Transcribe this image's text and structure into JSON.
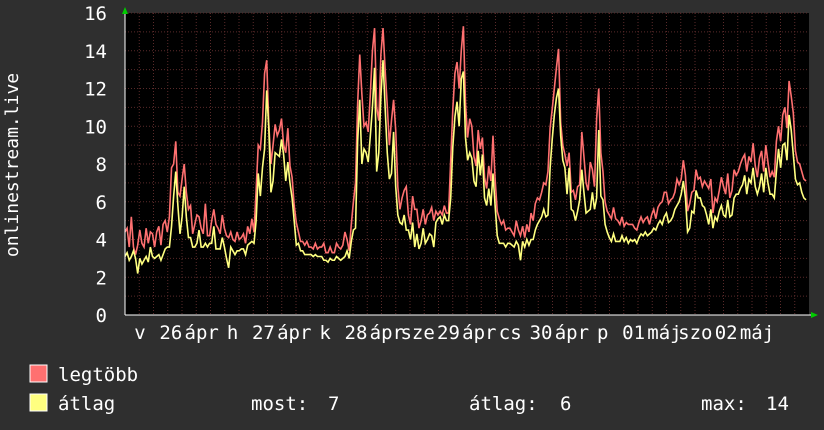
{
  "chart_data": {
    "type": "line",
    "ylabel": "onlinestream.live",
    "ylim": [
      0,
      16
    ],
    "yticks": [
      0,
      2,
      4,
      6,
      8,
      10,
      12,
      14,
      16
    ],
    "xticks": [
      "v",
      "26",
      "ápr",
      "h",
      "27",
      "ápr",
      "k",
      "28",
      "ápr",
      "sze",
      "29",
      "ápr",
      "cs",
      "30",
      "ápr",
      "p",
      "01",
      "máj",
      "szo",
      "02",
      "máj"
    ],
    "grid": true,
    "series": [
      {
        "name": "legtöbb",
        "color": "#ff7070",
        "values": [
          4.4,
          4.6,
          3.6,
          5.2,
          3.6,
          3.2,
          3.7,
          4.5,
          3.8,
          3.6,
          4.6,
          3.8,
          4.4,
          4.3,
          3.6,
          4.4,
          4.7,
          3.7,
          4.8,
          5.0,
          4.4,
          5.2,
          7.8,
          8.0,
          9.2,
          6.5,
          6.3,
          7.2,
          8.0,
          6.5,
          5.6,
          5.8,
          4.3,
          4.8,
          5.3,
          5.2,
          4.6,
          4.3,
          5.9,
          4.2,
          4.2,
          5.0,
          5.6,
          4.8,
          4.6,
          4.3,
          5.3,
          4.6,
          4.2,
          4.1,
          4.4,
          4.0,
          3.9,
          4.4,
          4.0,
          4.1,
          4.3,
          3.8,
          4.7,
          4.3,
          5.1,
          4.4,
          6.6,
          9.0,
          8.8,
          10.2,
          12.8,
          13.5,
          10.1,
          8.0,
          9.0,
          10.1,
          9.5,
          9.8,
          10.4,
          9.0,
          8.6,
          9.9,
          7.9,
          7.3,
          5.8,
          4.9,
          4.4,
          3.9,
          3.9,
          3.7,
          3.9,
          3.6,
          3.6,
          3.5,
          3.8,
          3.5,
          3.6,
          3.6,
          3.8,
          3.3,
          3.3,
          3.6,
          3.3,
          3.3,
          3.8,
          3.6,
          3.5,
          3.7,
          4.4,
          4.0,
          3.4,
          4.8,
          6.0,
          7.0,
          11.2,
          13.8,
          11.7,
          10.0,
          10.2,
          9.7,
          11.7,
          14.0,
          15.2,
          11.0,
          10.3,
          13.8,
          15.2,
          13.0,
          11.1,
          9.0,
          10.3,
          11.4,
          9.8,
          6.8,
          5.6,
          6.2,
          6.6,
          6.8,
          5.3,
          4.8,
          6.3,
          5.6,
          5.6,
          4.6,
          5.0,
          5.6,
          4.8,
          5.3,
          5.4,
          5.7,
          5.0,
          5.5,
          5.3,
          5.5,
          5.3,
          5.8,
          5.4,
          5.4,
          8.2,
          10.9,
          12.8,
          13.4,
          12.0,
          14.0,
          15.3,
          11.2,
          9.4,
          10.4,
          10.0,
          8.4,
          7.9,
          9.8,
          8.8,
          9.4,
          7.3,
          6.7,
          7.9,
          7.1,
          9.5,
          7.2,
          5.5,
          5.1,
          4.8,
          5.0,
          4.5,
          4.6,
          4.6,
          4.4,
          4.2,
          5.0,
          4.5,
          4.2,
          4.7,
          4.1,
          4.8,
          4.4,
          5.4,
          5.0,
          5.9,
          6.2,
          6.1,
          6.5,
          7.0,
          6.9,
          7.6,
          9.9,
          10.9,
          12.0,
          13.1,
          14.1,
          10.2,
          9.0,
          8.5,
          7.9,
          8.6,
          6.5,
          6.6,
          6.1,
          6.8,
          6.9,
          9.7,
          8.4,
          7.0,
          6.6,
          8.1,
          7.7,
          6.8,
          10.4,
          12.0,
          8.6,
          7.6,
          6.0,
          5.5,
          5.3,
          5.1,
          5.7,
          5.1,
          5.0,
          4.8,
          5.2,
          4.7,
          4.9,
          4.8,
          4.8,
          4.8,
          4.6,
          4.5,
          4.9,
          5.2,
          4.9,
          5.1,
          5.2,
          4.8,
          5.3,
          5.6,
          5.1,
          5.7,
          5.9,
          6.0,
          6.5,
          6.5,
          5.9,
          6.1,
          6.2,
          6.5,
          7.2,
          6.9,
          7.2,
          8.2,
          7.4,
          5.5,
          5.9,
          6.5,
          6.6,
          7.7,
          7.2,
          7.3,
          6.8,
          7.1,
          6.9,
          6.7,
          7.2,
          5.4,
          6.2,
          6.0,
          6.6,
          7.3,
          6.8,
          6.4,
          7.5,
          6.2,
          6.6,
          7.7,
          7.4,
          7.6,
          8.0,
          8.3,
          8.5,
          7.6,
          8.4,
          8.1,
          9.1,
          7.9,
          7.3,
          8.3,
          8.7,
          7.6,
          9.0,
          8.1,
          7.3,
          7.6,
          7.3,
          9.2,
          10.0,
          9.2,
          10.6,
          11.0,
          9.9,
          12.4,
          11.6,
          10.7,
          8.7,
          8.1,
          8.0,
          7.6,
          7.2,
          7.1
        ]
      },
      {
        "name": "átlag",
        "color": "#ffff80",
        "values": [
          3.1,
          3.3,
          2.9,
          3.1,
          3.4,
          3.0,
          2.2,
          3.0,
          2.7,
          2.9,
          3.1,
          2.8,
          3.6,
          3.1,
          3.0,
          3.1,
          3.2,
          2.9,
          3.2,
          3.5,
          3.6,
          3.6,
          4.7,
          6.3,
          7.6,
          5.8,
          4.3,
          5.2,
          6.8,
          5.2,
          4.1,
          4.1,
          3.6,
          3.6,
          3.8,
          4.5,
          3.6,
          3.6,
          3.8,
          3.6,
          3.8,
          3.8,
          4.7,
          3.5,
          3.5,
          3.5,
          4.1,
          3.6,
          3.0,
          2.5,
          3.6,
          3.4,
          3.2,
          3.4,
          3.4,
          3.5,
          3.5,
          3.2,
          3.7,
          3.8,
          3.9,
          3.8,
          5.0,
          7.5,
          6.3,
          7.8,
          8.8,
          11.9,
          9.9,
          6.5,
          7.1,
          8.6,
          8.5,
          8.4,
          9.3,
          8.5,
          7.1,
          8.1,
          7.0,
          6.2,
          5.0,
          3.7,
          3.8,
          3.4,
          3.4,
          3.2,
          3.2,
          3.2,
          3.2,
          3.1,
          3.2,
          3.1,
          3.1,
          3.1,
          2.9,
          2.9,
          2.8,
          3.0,
          2.9,
          2.9,
          3.1,
          3.0,
          2.9,
          3.0,
          3.1,
          3.4,
          3.0,
          3.9,
          4.5,
          4.6,
          9.2,
          11.4,
          8.0,
          8.8,
          8.6,
          8.1,
          9.5,
          11.0,
          13.1,
          7.6,
          8.6,
          11.6,
          13.5,
          11.0,
          8.6,
          7.2,
          7.5,
          9.7,
          6.8,
          5.3,
          4.9,
          4.8,
          5.3,
          4.5,
          4.5,
          4.0,
          4.9,
          3.6,
          4.3,
          3.5,
          3.8,
          4.6,
          3.8,
          4.0,
          4.3,
          4.2,
          3.6,
          4.9,
          5.1,
          5.2,
          4.8,
          5.3,
          5.0,
          5.0,
          6.2,
          8.9,
          10.5,
          11.3,
          10.0,
          12.5,
          12.9,
          9.4,
          8.2,
          8.6,
          8.3,
          7.1,
          6.8,
          8.7,
          7.4,
          8.5,
          6.2,
          5.8,
          6.7,
          5.8,
          7.5,
          5.8,
          4.2,
          3.8,
          3.8,
          3.8,
          3.6,
          3.8,
          3.8,
          3.7,
          3.6,
          3.9,
          3.7,
          2.9,
          3.9,
          3.6,
          4.0,
          3.7,
          4.0,
          4.0,
          4.5,
          4.8,
          5.0,
          5.2,
          5.6,
          5.2,
          5.3,
          7.8,
          9.3,
          10.6,
          11.5,
          12.0,
          9.5,
          8.2,
          7.8,
          6.4,
          7.8,
          5.6,
          5.5,
          5.0,
          5.5,
          6.1,
          7.7,
          6.5,
          5.4,
          5.5,
          5.6,
          6.5,
          5.6,
          6.2,
          9.8,
          6.3,
          6.1,
          4.8,
          4.4,
          4.1,
          3.9,
          4.3,
          3.9,
          3.9,
          3.9,
          4.2,
          3.9,
          4.1,
          3.8,
          4.0,
          3.9,
          4.0,
          3.8,
          4.1,
          4.3,
          4.2,
          4.4,
          4.2,
          4.3,
          4.4,
          4.6,
          4.5,
          4.8,
          5.0,
          4.8,
          5.2,
          5.4,
          4.9,
          5.0,
          5.2,
          5.6,
          5.8,
          6.0,
          6.4,
          7.1,
          6.2,
          4.4,
          4.6,
          5.5,
          5.4,
          6.6,
          6.2,
          6.2,
          5.8,
          5.7,
          5.3,
          4.8,
          5.6,
          4.6,
          5.2,
          5.0,
          5.5,
          5.8,
          5.3,
          5.2,
          6.1,
          5.2,
          5.3,
          6.2,
          6.4,
          6.4,
          6.7,
          6.9,
          7.4,
          6.4,
          7.2,
          7.0,
          7.8,
          6.8,
          6.4,
          6.8,
          7.5,
          6.5,
          7.8,
          7.0,
          6.4,
          6.4,
          6.2,
          7.6,
          8.8,
          7.8,
          9.0,
          9.1,
          8.2,
          10.6,
          9.8,
          8.5,
          7.2,
          6.9,
          7.0,
          6.5,
          6.2,
          6.1
        ]
      }
    ]
  },
  "legend": [
    {
      "name": "legtöbb",
      "color": "#ff7070"
    },
    {
      "name": "átlag",
      "color": "#ffff80"
    }
  ],
  "stats": {
    "most_label": "most:",
    "most_value": "7",
    "atlag_label": "átlag:",
    "atlag_value": "6",
    "max_label": "max:",
    "max_value": "14"
  },
  "colors": {
    "background": "#2f2f2f",
    "plot_background": "#000000",
    "grid": "#5a2a2a",
    "axis": "#ffffff",
    "arrow": "#00cc00"
  }
}
